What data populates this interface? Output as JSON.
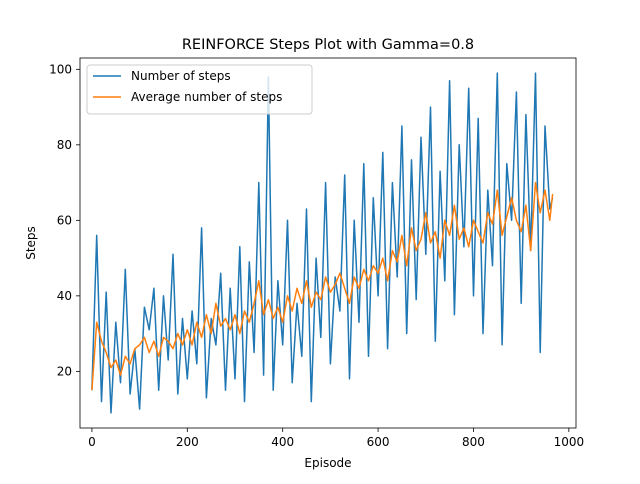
{
  "chart_data": {
    "type": "line",
    "title": "REINFORCE Steps Plot with Gamma=0.8",
    "xlabel": "Episode",
    "ylabel": "Steps",
    "xlim": [
      -25,
      1015
    ],
    "ylim": [
      5,
      103
    ],
    "xticks": [
      0,
      200,
      400,
      600,
      800,
      1000
    ],
    "yticks": [
      20,
      40,
      60,
      80,
      100
    ],
    "grid": false,
    "legend_position": "top-left",
    "series": [
      {
        "name": "Number of steps",
        "color": "#1f77b4",
        "x": [
          0,
          10,
          20,
          30,
          40,
          50,
          60,
          70,
          80,
          90,
          100,
          110,
          120,
          130,
          140,
          150,
          160,
          170,
          180,
          190,
          200,
          210,
          220,
          230,
          240,
          250,
          260,
          270,
          280,
          290,
          300,
          310,
          320,
          330,
          340,
          350,
          360,
          370,
          380,
          390,
          400,
          410,
          420,
          430,
          440,
          450,
          460,
          470,
          480,
          490,
          500,
          510,
          520,
          530,
          540,
          550,
          560,
          570,
          580,
          590,
          600,
          610,
          620,
          630,
          640,
          650,
          660,
          670,
          680,
          690,
          700,
          710,
          720,
          730,
          740,
          750,
          760,
          770,
          780,
          790,
          800,
          810,
          820,
          830,
          840,
          850,
          860,
          870,
          880,
          890,
          900,
          910,
          920,
          930,
          940,
          950,
          960,
          966
        ],
        "values": [
          15,
          56,
          12,
          41,
          9,
          33,
          17,
          47,
          14,
          26,
          10,
          37,
          31,
          42,
          15,
          40,
          23,
          51,
          14,
          34,
          18,
          36,
          22,
          58,
          13,
          34,
          27,
          46,
          15,
          42,
          18,
          53,
          12,
          49,
          25,
          70,
          19,
          98,
          15,
          44,
          27,
          60,
          17,
          38,
          24,
          63,
          12,
          50,
          29,
          70,
          22,
          45,
          36,
          72,
          18,
          60,
          33,
          75,
          24,
          66,
          40,
          78,
          26,
          70,
          45,
          85,
          30,
          76,
          39,
          82,
          51,
          90,
          28,
          73,
          44,
          97,
          35,
          80,
          53,
          95,
          40,
          87,
          30,
          68,
          48,
          99,
          27,
          75,
          60,
          94,
          38,
          88,
          52,
          99,
          25,
          85,
          63,
          66
        ]
      },
      {
        "name": "Average number of steps",
        "color": "#ff7f0e",
        "x": [
          0,
          10,
          20,
          30,
          40,
          50,
          60,
          70,
          80,
          90,
          100,
          110,
          120,
          130,
          140,
          150,
          160,
          170,
          180,
          190,
          200,
          210,
          220,
          230,
          240,
          250,
          260,
          270,
          280,
          290,
          300,
          310,
          320,
          330,
          340,
          350,
          360,
          370,
          380,
          390,
          400,
          410,
          420,
          430,
          440,
          450,
          460,
          470,
          480,
          490,
          500,
          510,
          520,
          530,
          540,
          550,
          560,
          570,
          580,
          590,
          600,
          610,
          620,
          630,
          640,
          650,
          660,
          670,
          680,
          690,
          700,
          710,
          720,
          730,
          740,
          750,
          760,
          770,
          780,
          790,
          800,
          810,
          820,
          830,
          840,
          850,
          860,
          870,
          880,
          890,
          900,
          910,
          920,
          930,
          940,
          950,
          960,
          966
        ],
        "values": [
          15,
          33,
          28,
          25,
          21,
          23,
          19,
          24,
          22,
          26,
          27,
          29,
          25,
          28,
          24,
          29,
          28,
          26,
          30,
          27,
          31,
          27,
          33,
          29,
          35,
          30,
          38,
          32,
          34,
          31,
          35,
          30,
          36,
          33,
          38,
          44,
          35,
          39,
          34,
          37,
          33,
          40,
          36,
          42,
          38,
          44,
          37,
          41,
          39,
          45,
          41,
          43,
          46,
          42,
          38,
          45,
          42,
          47,
          44,
          48,
          46,
          50,
          44,
          52,
          49,
          56,
          48,
          58,
          52,
          55,
          62,
          54,
          57,
          50,
          60,
          56,
          64,
          55,
          58,
          53,
          60,
          57,
          54,
          62,
          59,
          68,
          56,
          61,
          66,
          60,
          57,
          64,
          52,
          70,
          62,
          68,
          60,
          67
        ]
      }
    ]
  }
}
